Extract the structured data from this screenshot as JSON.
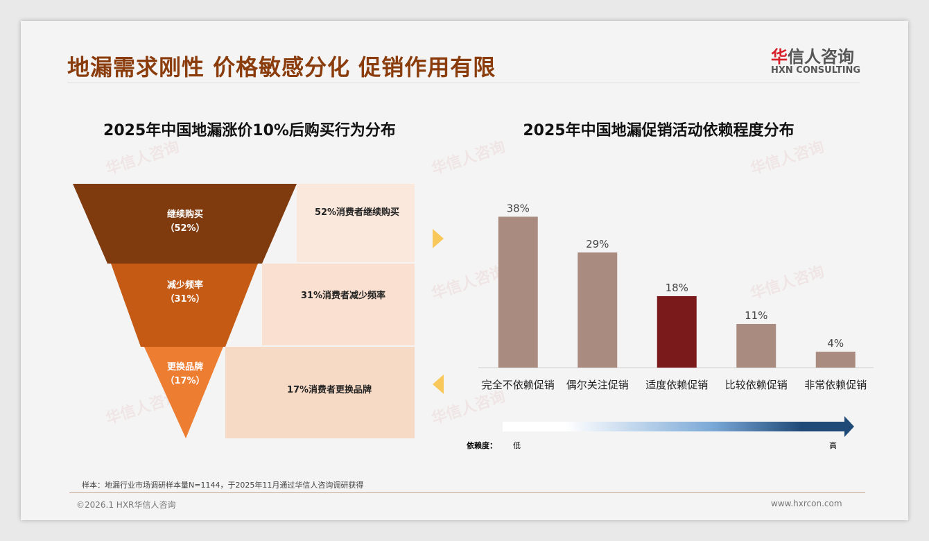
{
  "header": {
    "title": "地漏需求刚性 价格敏感分化 促销作用有限",
    "logo_cn_first": "华",
    "logo_cn_rest": "信人咨询",
    "logo_en": "HXN CONSULTING"
  },
  "watermark": "华信人咨询",
  "chart_data": [
    {
      "type": "funnel",
      "title": "2025年中国地漏涨价10%后购买行为分布",
      "stages": [
        {
          "label": "继续购买",
          "value_label": "（52%）",
          "value": 52,
          "note": "52%消费者继续购买"
        },
        {
          "label": "减少频率",
          "value_label": "（31%）",
          "value": 31,
          "note": "31%消费者减少频率"
        },
        {
          "label": "更换品牌",
          "value_label": "（17%）",
          "value": 17,
          "note": "17%消费者更换品牌"
        }
      ],
      "colors": [
        "#7f3a0e",
        "#c55a15",
        "#ed7d31"
      ]
    },
    {
      "type": "bar",
      "title": "2025年中国地漏促销活动依赖程度分布",
      "categories": [
        "完全不依赖促销",
        "偶尔关注促销",
        "适度依赖促销",
        "比较依赖促销",
        "非常依赖促销"
      ],
      "values": [
        38,
        29,
        18,
        11,
        4
      ],
      "labels": [
        "38%",
        "29%",
        "18%",
        "11%",
        "4%"
      ],
      "highlight_index": 2,
      "ylim": [
        0,
        40
      ],
      "colors": {
        "bar": "#a98b80",
        "highlight": "#7a1a1a"
      },
      "scale": {
        "label": "依赖度：",
        "low": "低",
        "high": "高"
      }
    }
  ],
  "footer": {
    "note": "样本：地漏行业市场调研样本量N=1144，于2025年11月通过华信人咨询调研获得",
    "copyright": "©2026.1 HXR华信人咨询",
    "url": "www.hxrcon.com"
  }
}
